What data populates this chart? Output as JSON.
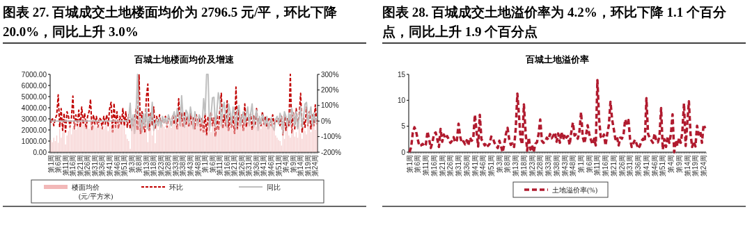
{
  "chart_data": [
    {
      "type": "bar",
      "title": "图表 27. 百城成交土地楼面均价为 2796.5 元/平，环比下降 20.0%，同比上升 3.0%",
      "subtitle": "百城土地楼面均价及增速",
      "categories": [
        "第1周",
        null,
        null,
        null,
        null,
        "第6周",
        null,
        null,
        null,
        null,
        "第11周",
        null,
        null,
        null,
        null,
        "第16周",
        null,
        null,
        null,
        null,
        "第21周",
        null,
        null,
        null,
        null,
        "第26周",
        null,
        null,
        null,
        null,
        "第31周",
        null,
        null,
        null,
        null,
        "第36周",
        null,
        null,
        null,
        null,
        "第41周",
        null,
        null,
        null,
        null,
        "第46周",
        null,
        null,
        null,
        null,
        "第51周",
        null,
        null,
        null,
        null,
        "第3周",
        null,
        null,
        null,
        null,
        "第8周",
        null,
        null,
        null,
        null,
        "第13周",
        null,
        null,
        null,
        null,
        "第18周",
        null,
        null,
        null,
        null,
        "第23周",
        null,
        null,
        null,
        null,
        "第28周",
        null,
        null,
        null,
        null,
        "第33周",
        null,
        null,
        null,
        null,
        "第38周",
        null,
        null,
        null,
        null,
        "第43周",
        null,
        null,
        null,
        null,
        "第48周",
        null,
        null,
        null,
        null,
        "第1周",
        null,
        null,
        null,
        null,
        "第6周",
        null,
        null,
        null,
        null,
        "第11周",
        null,
        null,
        null,
        null,
        "第16周",
        null,
        null,
        null,
        null,
        "第21周",
        null,
        null,
        null,
        null,
        "第26周",
        null,
        null,
        null,
        null,
        "第31周",
        null,
        null,
        null,
        null,
        "第36周",
        null,
        null,
        null,
        null,
        "第41周",
        null,
        null,
        null,
        null,
        "第46周",
        null,
        null,
        null,
        null,
        "第51周",
        null,
        null,
        null,
        null,
        "第4周",
        null,
        null,
        null,
        null,
        "第9周",
        null,
        null,
        null,
        null,
        "第14周",
        null,
        null,
        null,
        null,
        "第19周",
        null,
        null,
        null,
        null,
        "第24周",
        null
      ],
      "series": [
        {
          "name": "楼面均价 (元/平方米)",
          "color": "#f2b8b8",
          "values": [
            1100,
            900,
            1300,
            1000,
            1500,
            850,
            2100,
            1300,
            1800,
            2400,
            700,
            1500,
            1900,
            2500,
            1600,
            2200,
            2700,
            2000,
            2400,
            2600,
            2200,
            2800,
            2500,
            3000,
            2300,
            2600,
            2100,
            2700,
            2900,
            2400,
            2500,
            2200,
            2800,
            2600,
            2300,
            2500,
            2100,
            2400,
            2700,
            1900,
            2300,
            2600,
            2200,
            2800,
            2400,
            2600,
            3000,
            2700,
            2500,
            2800,
            2400,
            1600,
            1200,
            1000,
            300,
            2400,
            2800,
            3100,
            2600,
            2900,
            3300,
            2700,
            2200,
            2500,
            1800,
            2600,
            900,
            2100,
            2800,
            1500,
            2400,
            800,
            2300,
            2000,
            2600,
            2200,
            2500,
            2300,
            2100,
            2700,
            2400,
            2600,
            2200,
            2800,
            2500,
            3000,
            2700,
            2300,
            2900,
            2600,
            3100,
            2800,
            2400,
            3000,
            2700,
            2500,
            3200,
            2900,
            2600,
            3300,
            2800,
            2500,
            3000,
            2700,
            2400,
            2200,
            1600,
            2800,
            2400,
            1800,
            2600,
            3000,
            2500,
            2200,
            2900,
            2600,
            3200,
            2800,
            2400,
            3000,
            2700,
            2300,
            2900,
            2600,
            2100,
            2800,
            2500,
            2200,
            2900,
            2600,
            2400,
            3000,
            2700,
            2300,
            2500,
            2800,
            2600,
            2200,
            2900,
            2500,
            2300,
            2700,
            2400,
            2100,
            2600,
            2800,
            2500,
            2300,
            2700,
            2400,
            2600,
            2200,
            2500,
            1500,
            1300,
            1100,
            1000,
            600,
            2400,
            1200,
            1900,
            2800,
            1500,
            1300,
            2600,
            2000,
            1400,
            1800,
            1300,
            2500,
            1700,
            1200,
            2200,
            1900,
            1600,
            2700,
            2300,
            1800,
            2400,
            2600,
            2000,
            2800
          ]
        },
        {
          "name": "环比",
          "type": "line",
          "axis": "y2",
          "line_style": "dashed",
          "color": "#c00000",
          "values": [
            -10,
            20,
            -30,
            15,
            40,
            168,
            -40,
            80,
            -60,
            50,
            -70,
            60,
            30,
            -40,
            20,
            160,
            -50,
            40,
            -30,
            70,
            -40,
            90,
            -20,
            50,
            -50,
            30,
            60,
            140,
            -60,
            40,
            -20,
            30,
            -40,
            20,
            10,
            -50,
            30,
            -20,
            40,
            -30,
            80,
            120,
            -70,
            115,
            -40,
            60,
            -50,
            30,
            -20,
            80,
            -30,
            60,
            -40,
            40,
            -50,
            20,
            -30,
            10,
            80,
            -60,
            300,
            -80,
            60,
            -40,
            -70,
            150,
            237,
            -60,
            50,
            -30,
            90,
            -50,
            30,
            -20,
            40,
            -30,
            20,
            -10,
            30,
            -40,
            20,
            10,
            -30,
            40,
            -20,
            30,
            -50,
            144,
            -30,
            50,
            -40,
            60,
            -20,
            30,
            -40,
            50,
            -30,
            20,
            -50,
            40,
            -20,
            30,
            -60,
            20,
            -70,
            50,
            -90,
            30,
            -40,
            60,
            -30,
            20,
            -100,
            40,
            -60,
            70,
            178,
            -50,
            40,
            -30,
            130,
            -60,
            50,
            -40,
            30,
            -80,
            218,
            -50,
            70,
            -30,
            40,
            -60,
            110,
            -40,
            30,
            -20,
            50,
            -60,
            40,
            -30,
            80,
            -40,
            20,
            -30,
            60,
            -20,
            30,
            -40,
            10,
            20,
            -30,
            40,
            -20,
            10,
            -10,
            20,
            -30,
            30,
            -90,
            40,
            -60,
            20,
            -30,
            300,
            -80,
            60,
            -50,
            80,
            -40,
            30,
            178,
            -70,
            20,
            -40,
            90,
            -30,
            60,
            -50,
            40,
            -30,
            104,
            -20
          ]
        },
        {
          "name": "同比",
          "type": "line",
          "axis": "y2",
          "line_style": "solid",
          "color": "#bfbfbf",
          "values": [
            0,
            0,
            0,
            0,
            0,
            0,
            0,
            0,
            0,
            0,
            0,
            0,
            0,
            0,
            0,
            0,
            0,
            0,
            0,
            0,
            0,
            0,
            0,
            0,
            0,
            0,
            0,
            0,
            0,
            0,
            0,
            0,
            0,
            0,
            0,
            0,
            0,
            0,
            0,
            0,
            0,
            0,
            0,
            0,
            0,
            0,
            0,
            0,
            0,
            0,
            0,
            0,
            0,
            20,
            115,
            -60,
            40,
            -80,
            60,
            300,
            -40,
            20,
            -70,
            50,
            -30,
            80,
            -50,
            30,
            -20,
            120,
            -60,
            -20,
            10,
            -30,
            20,
            -40,
            30,
            -10,
            20,
            -20,
            40,
            10,
            -30,
            30,
            60,
            -20,
            80,
            40,
            -30,
            163,
            20,
            -40,
            70,
            50,
            -20,
            90,
            30,
            -50,
            60,
            20,
            -30,
            40,
            10,
            -20,
            144,
            40,
            300,
            300,
            -60,
            30,
            150,
            153,
            -40,
            60,
            182,
            130,
            -30,
            80,
            120,
            20,
            -40,
            110,
            60,
            -20,
            90,
            40,
            -50,
            70,
            100,
            -30,
            20,
            60,
            -20,
            40,
            90,
            -30,
            50,
            110,
            -40,
            20,
            70,
            -60,
            30,
            -20,
            40,
            10,
            -30,
            30,
            -50,
            -10,
            20,
            -40,
            -60,
            10,
            30,
            -20,
            50,
            20,
            -80,
            60,
            30,
            -40,
            50,
            -20,
            80,
            40,
            -30,
            60,
            -50,
            20,
            90,
            -40,
            30,
            110,
            120,
            -20,
            40,
            90,
            -30,
            50,
            -10,
            20
          ]
        }
      ],
      "ylim": [
        0,
        7000
      ],
      "yticks": [
        {
          "value": 0,
          "label": "0.00"
        },
        {
          "value": 1000,
          "label": "1000.00"
        },
        {
          "value": 2000,
          "label": "2000.00"
        },
        {
          "value": 3000,
          "label": "3000.00"
        },
        {
          "value": 4000,
          "label": "4000.00"
        },
        {
          "value": 5000,
          "label": "5000.00"
        },
        {
          "value": 6000,
          "label": "6000.00"
        },
        {
          "value": 7000,
          "label": "7000.00"
        }
      ],
      "y2lim": [
        -200,
        300
      ],
      "y2ticks": [
        {
          "value": -200,
          "label": "-200%"
        },
        {
          "value": -100,
          "label": "-100%"
        },
        {
          "value": 0,
          "label": "0%"
        },
        {
          "value": 100,
          "label": "100%"
        },
        {
          "value": 200,
          "label": "200%"
        },
        {
          "value": 300,
          "label": "300%"
        }
      ],
      "legend": "bottom"
    },
    {
      "type": "line",
      "title": "图表 28. 百城成交土地溢价率为 4.2%，环比下降 1.1 个百分点，同比上升 1.9 个百分点",
      "subtitle": "百城土地溢价率",
      "categories": [
        "第1周",
        null,
        null,
        null,
        null,
        "第6周",
        null,
        null,
        null,
        null,
        "第11周",
        null,
        null,
        null,
        null,
        "第16周",
        null,
        null,
        null,
        null,
        "第21周",
        null,
        null,
        null,
        null,
        "第26周",
        null,
        null,
        null,
        null,
        "第31周",
        null,
        null,
        null,
        null,
        "第36周",
        null,
        null,
        null,
        null,
        "第41周",
        null,
        null,
        null,
        null,
        "第46周",
        null,
        null,
        null,
        null,
        "第51周",
        null,
        null,
        null,
        null,
        "第3周",
        null,
        null,
        null,
        null,
        "第8周",
        null,
        null,
        null,
        null,
        "第13周",
        null,
        null,
        null,
        null,
        "第18周",
        null,
        null,
        null,
        null,
        "第23周",
        null,
        null,
        null,
        null,
        "第28周",
        null,
        null,
        null,
        null,
        "第33周",
        null,
        null,
        null,
        null,
        "第38周",
        null,
        null,
        null,
        null,
        "第43周",
        null,
        null,
        null,
        null,
        "第48周",
        null,
        null,
        null,
        null,
        "第1周",
        null,
        null,
        null,
        null,
        "第6周",
        null,
        null,
        null,
        null,
        "第11周",
        null,
        null,
        null,
        null,
        "第16周",
        null,
        null,
        null,
        null,
        "第21周",
        null,
        null,
        null,
        null,
        "第26周",
        null,
        null,
        null,
        null,
        "第31周",
        null,
        null,
        null,
        null,
        "第36周",
        null,
        null,
        null,
        null,
        "第41周",
        null,
        null,
        null,
        null,
        "第46周",
        null,
        null,
        null,
        null,
        "第51周",
        null,
        null,
        null,
        null,
        "第4周",
        null,
        null,
        null,
        null,
        "第9周",
        null,
        null,
        null,
        null,
        "第14周",
        null,
        null,
        null,
        null,
        "第19周",
        null,
        null,
        null,
        null,
        "第24周",
        null
      ],
      "series": [
        {
          "name": "土地溢价率(%)",
          "line_style": "dashed",
          "color": "#b01a2e",
          "values": [
            0,
            1,
            3.8,
            4.8,
            4,
            2.5,
            1.2,
            1.3,
            1.6,
            1.1,
            1.5,
            4,
            2.5,
            0.8,
            1.9,
            3.5,
            3.8,
            2.5,
            1,
            4.5,
            2,
            3.4,
            2.6,
            3.1,
            2.5,
            1.8,
            2.2,
            2.9,
            1.9,
            2.3,
            5.5,
            3,
            1.8,
            2.1,
            1.5,
            2.3,
            1.3,
            2.8,
            2.2,
            2.6,
            7.2,
            4,
            1.1,
            7.2,
            2.5,
            2,
            1.3,
            1.8,
            1.2,
            1.6,
            3,
            2.7,
            1.8,
            1.3,
            0.8,
            2.2,
            1.1,
            0,
            1.5,
            3.5,
            4.7,
            2.5,
            1.4,
            1.7,
            1,
            4.5,
            11.3,
            7,
            2.5,
            1.5,
            9.2,
            4,
            0.3,
            2.8,
            0.5,
            1.3,
            0,
            1.6,
            1.9,
            3.5,
            6.3,
            2.2,
            1.8,
            2,
            2.8,
            2.4,
            3.5,
            2.7,
            3.2,
            3.8,
            2,
            3.6,
            1.8,
            3.9,
            2.4,
            3.5,
            2.8,
            3.1,
            1.4,
            3.8,
            5.7,
            3.2,
            3.4,
            2.6,
            4,
            7.7,
            3,
            1.7,
            3.2,
            5.2,
            3.5,
            2.4,
            1.5,
            2.6,
            1.3,
            13.9,
            6.5,
            3,
            2.6,
            3.4,
            1.3,
            3.5,
            5.2,
            9.7,
            6.3,
            4.5,
            2.5,
            3,
            1.3,
            2.8,
            2.6,
            3.4,
            6.3,
            5.5,
            6.2,
            2.5,
            1,
            1.7,
            2.4,
            1.6,
            0.7,
            1.2,
            2.2,
            2.6,
            2,
            10.4,
            3.5,
            2.8,
            2.3,
            1.8,
            3.6,
            2.3,
            1.9,
            3,
            8.5,
            0.5,
            2.5,
            1,
            3,
            1.8,
            3.5,
            7.3,
            0,
            2.3,
            1.2,
            2.8,
            1.8,
            4,
            9.4,
            1.2,
            5.5,
            9.8,
            3.5,
            1,
            2.1,
            1.1,
            5.1,
            3.4,
            4,
            1.8,
            5.3,
            4.6
          ]
        }
      ],
      "ylim": [
        0,
        15
      ],
      "yticks": [
        0,
        5,
        10,
        15
      ],
      "legend": "bottom"
    }
  ]
}
